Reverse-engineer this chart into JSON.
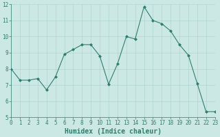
{
  "x": [
    0,
    1,
    2,
    3,
    4,
    5,
    6,
    7,
    8,
    9,
    10,
    11,
    12,
    13,
    14,
    15,
    16,
    17,
    18,
    19,
    20,
    21,
    22,
    23
  ],
  "y": [
    8.0,
    7.3,
    7.3,
    7.4,
    6.7,
    7.5,
    8.9,
    9.2,
    9.5,
    9.5,
    8.8,
    7.05,
    8.3,
    10.0,
    9.85,
    11.85,
    11.0,
    10.8,
    10.35,
    9.5,
    8.85,
    7.1,
    5.35,
    5.35
  ],
  "xlim": [
    0,
    23
  ],
  "ylim": [
    5,
    12
  ],
  "yticks": [
    5,
    6,
    7,
    8,
    9,
    10,
    11,
    12
  ],
  "xticks": [
    0,
    1,
    2,
    3,
    4,
    5,
    6,
    7,
    8,
    9,
    10,
    11,
    12,
    13,
    14,
    15,
    16,
    17,
    18,
    19,
    20,
    21,
    22,
    23
  ],
  "xlabel": "Humidex (Indice chaleur)",
  "line_color": "#2e7d6e",
  "marker": "D",
  "marker_size": 2,
  "bg_color": "#cce8e4",
  "grid_color": "#b0d4d0",
  "tick_color": "#2e7d6e",
  "xlabel_color": "#2e7d6e",
  "tick_fontsize": 5.5,
  "xlabel_fontsize": 7
}
